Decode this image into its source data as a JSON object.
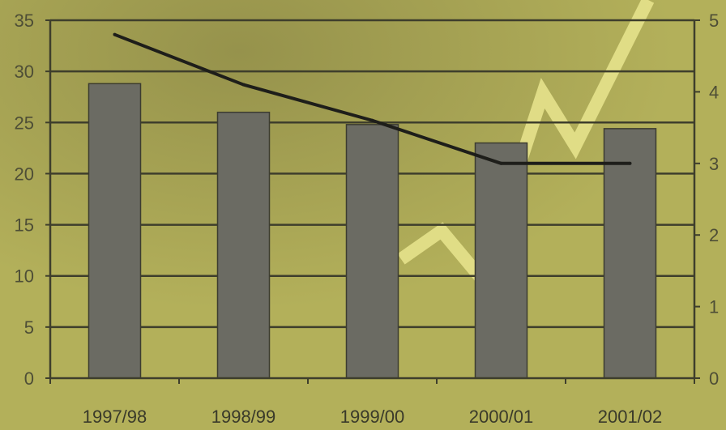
{
  "chart_data": {
    "type": "bar",
    "title": "",
    "xlabel": "",
    "ylabel": "",
    "categories": [
      "1997/98",
      "1998/99",
      "1999/00",
      "2000/01",
      "2001/02"
    ],
    "series": [
      {
        "type": "bar",
        "axis": "left",
        "values": [
          28.8,
          26.0,
          24.8,
          23.0,
          24.4
        ]
      },
      {
        "type": "line",
        "axis": "right",
        "values": [
          4.8,
          4.1,
          3.6,
          3.0,
          3.0
        ]
      }
    ],
    "ylim": [
      0,
      35
    ],
    "y2lim": [
      0,
      5
    ],
    "yticks": [
      "0",
      "5",
      "10",
      "15",
      "20",
      "25",
      "30",
      "35"
    ],
    "y2ticks": [
      "0",
      "1",
      "2",
      "3",
      "4",
      "5"
    ],
    "grid": true,
    "legend": "none",
    "colors": {
      "background": "#b3b05a",
      "bar_fill": "#6b6b63",
      "bar_stroke": "#3c3c30",
      "line": "#1e1e1a",
      "grid": "#3e3e2c",
      "decor_arrow": "#e9e58e"
    }
  }
}
